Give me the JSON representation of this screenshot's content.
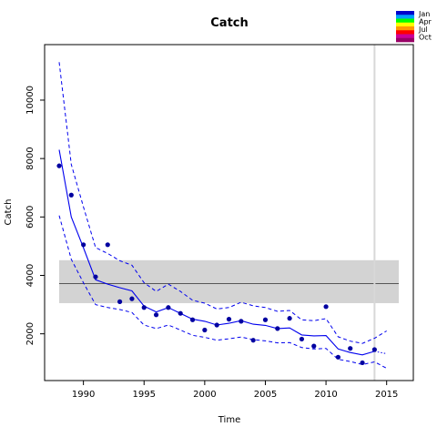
{
  "chart_data": {
    "type": "line",
    "title": "Catch",
    "xlabel": "Time",
    "ylabel": "Catch",
    "xlim": [
      1986.8,
      2017.2
    ],
    "ylim": [
      400,
      11900
    ],
    "x_ticks": [
      1990,
      1995,
      2000,
      2005,
      2010,
      2015
    ],
    "y_ticks": [
      2000,
      4000,
      6000,
      8000,
      10000
    ],
    "reference_band": {
      "lower": 3050,
      "upper": 4520,
      "median": 3720,
      "from": 1988,
      "to": 2016
    },
    "vertical_line_x": 2014,
    "observed": {
      "x": [
        1988,
        1989,
        1990,
        1991,
        1992,
        1993,
        1994,
        1995,
        1996,
        1997,
        1998,
        1999,
        2000,
        2001,
        2002,
        2003,
        2004,
        2005,
        2006,
        2007,
        2008,
        2009,
        2010,
        2011,
        2012,
        2013,
        2014
      ],
      "y": [
        7750,
        6750,
        5050,
        3950,
        5050,
        3100,
        3200,
        2900,
        2650,
        2900,
        2700,
        2480,
        2130,
        2300,
        2500,
        2430,
        1780,
        2480,
        2180,
        2530,
        1820,
        1580,
        2930,
        1200,
        1500,
        1010,
        1460
      ]
    },
    "series": [
      {
        "x": [
          1988,
          1989,
          1990,
          1991,
          1992,
          1993,
          1994,
          1995,
          1996,
          1997,
          1998,
          1999,
          2000,
          2001,
          2002,
          2003,
          2004,
          2005,
          2006,
          2007,
          2008,
          2009,
          2010,
          2011,
          2012,
          2013,
          2014
        ],
        "values": [
          8300,
          6000,
          4950,
          3850,
          3700,
          3580,
          3470,
          2950,
          2750,
          2900,
          2700,
          2500,
          2430,
          2300,
          2360,
          2450,
          2330,
          2290,
          2180,
          2200,
          1960,
          1930,
          1940,
          1480,
          1360,
          1280,
          1400
        ]
      },
      {
        "x": [
          1988,
          1989,
          1990,
          1991,
          1992,
          1993,
          1994,
          1995,
          1996,
          1997,
          1998,
          1999,
          2000,
          2001,
          2002,
          2003,
          2004,
          2005,
          2006,
          2007,
          2008,
          2009,
          2010,
          2011,
          2012,
          2013,
          2014,
          2015
        ],
        "values": [
          11300,
          7800,
          6350,
          4950,
          4750,
          4500,
          4350,
          3750,
          3450,
          3700,
          3450,
          3150,
          3050,
          2850,
          2900,
          3080,
          2960,
          2900,
          2770,
          2800,
          2480,
          2450,
          2520,
          1900,
          1750,
          1670,
          1850,
          2100
        ]
      },
      {
        "x": [
          1988,
          1989,
          1990,
          1991,
          1992,
          1993,
          1994,
          1995,
          1996,
          1997,
          1998,
          1999,
          2000,
          2001,
          2002,
          2003,
          2004,
          2005,
          2006,
          2007,
          2008,
          2009,
          2010,
          2011,
          2012,
          2013,
          2014,
          2015
        ],
        "values": [
          6050,
          4550,
          3750,
          3000,
          2900,
          2830,
          2730,
          2300,
          2180,
          2300,
          2130,
          1950,
          1880,
          1780,
          1830,
          1890,
          1800,
          1760,
          1690,
          1700,
          1530,
          1480,
          1500,
          1130,
          1050,
          950,
          1040,
          820
        ]
      },
      {
        "x": [
          2014,
          2015
        ],
        "values": [
          1400,
          1320
        ]
      }
    ],
    "legend": {
      "placement": "top-right",
      "labels": [
        "Jan",
        "Apr",
        "Jul",
        "Oct"
      ],
      "colors": [
        "#0000cc",
        "#00a0ff",
        "#00ff00",
        "#ffff00",
        "#ff9900",
        "#ff0000",
        "#cc0099",
        "#990066"
      ]
    },
    "colors": {
      "series": "#0000ee",
      "points": "#0000a0",
      "band": "#d3d3d3",
      "median_line": "#555555",
      "vertical_line": "#d8d8d8"
    }
  }
}
